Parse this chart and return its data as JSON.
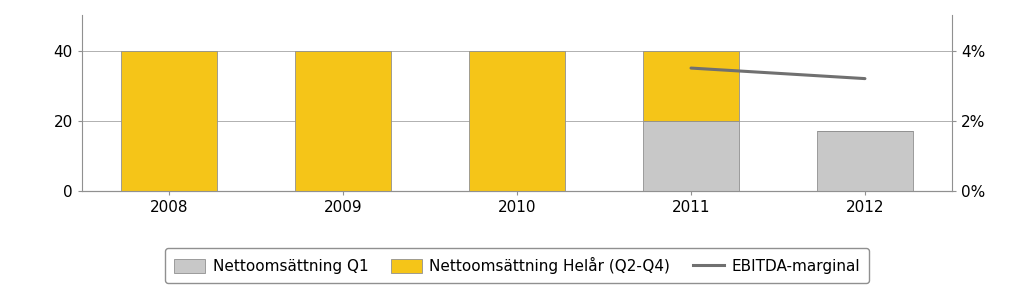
{
  "years": [
    2008,
    2009,
    2010,
    2011,
    2012
  ],
  "q1_values": [
    0,
    0,
    0,
    20,
    17
  ],
  "helaar_values": [
    40,
    40,
    40,
    20,
    0
  ],
  "ebitda_years": [
    2011,
    2012
  ],
  "ebitda_values": [
    0.035,
    0.032
  ],
  "ylim_left": [
    0,
    50
  ],
  "ylim_right": [
    0,
    0.05
  ],
  "yticks_left": [
    0,
    20,
    40
  ],
  "yticks_right": [
    0.0,
    0.02,
    0.04
  ],
  "ytick_right_labels": [
    "0%",
    "2%",
    "4%"
  ],
  "bar_width": 0.55,
  "q1_color": "#c8c8c8",
  "helaar_color": "#f5c518",
  "ebitda_color": "#707070",
  "ebitda_linewidth": 2.2,
  "legend_q1": "Nettoomsättning Q1",
  "legend_helaar": "Nettoomsättning Helår (Q2-Q4)",
  "legend_ebitda": "EBITDA-marginal",
  "bg_color": "#ffffff",
  "grid_color": "#b0b0b0",
  "font_size": 11,
  "tick_font_size": 11,
  "axis_color": "#909090"
}
